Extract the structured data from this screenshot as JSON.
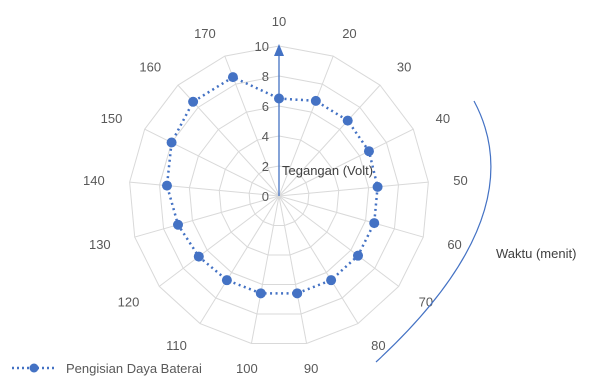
{
  "chart_data": {
    "type": "radar",
    "categories": [
      "10",
      "20",
      "30",
      "40",
      "50",
      "60",
      "70",
      "80",
      "90",
      "100",
      "110",
      "120",
      "130",
      "140",
      "150",
      "160",
      "170"
    ],
    "radial_ticks": [
      "0",
      "2",
      "4",
      "6",
      "8",
      "10"
    ],
    "rlim": [
      0,
      10
    ],
    "series": [
      {
        "name": "Pengisian Daya Baterai",
        "color": "#4472C4",
        "line_style": "dotted",
        "marker": "circle",
        "values": [
          6.5,
          6.8,
          6.8,
          6.7,
          6.6,
          6.6,
          6.6,
          6.6,
          6.6,
          6.6,
          6.6,
          6.7,
          7.0,
          7.5,
          8.0,
          8.5,
          8.5
        ]
      }
    ],
    "radial_axis_title": "Tegangan (Volt)",
    "angular_axis_title": "Waktu (menit)",
    "legend": {
      "position": "bottom-left"
    },
    "grid": true
  },
  "colors": {
    "series": "#4472C4",
    "grid": "#D9D9D9",
    "text": "#595959"
  }
}
